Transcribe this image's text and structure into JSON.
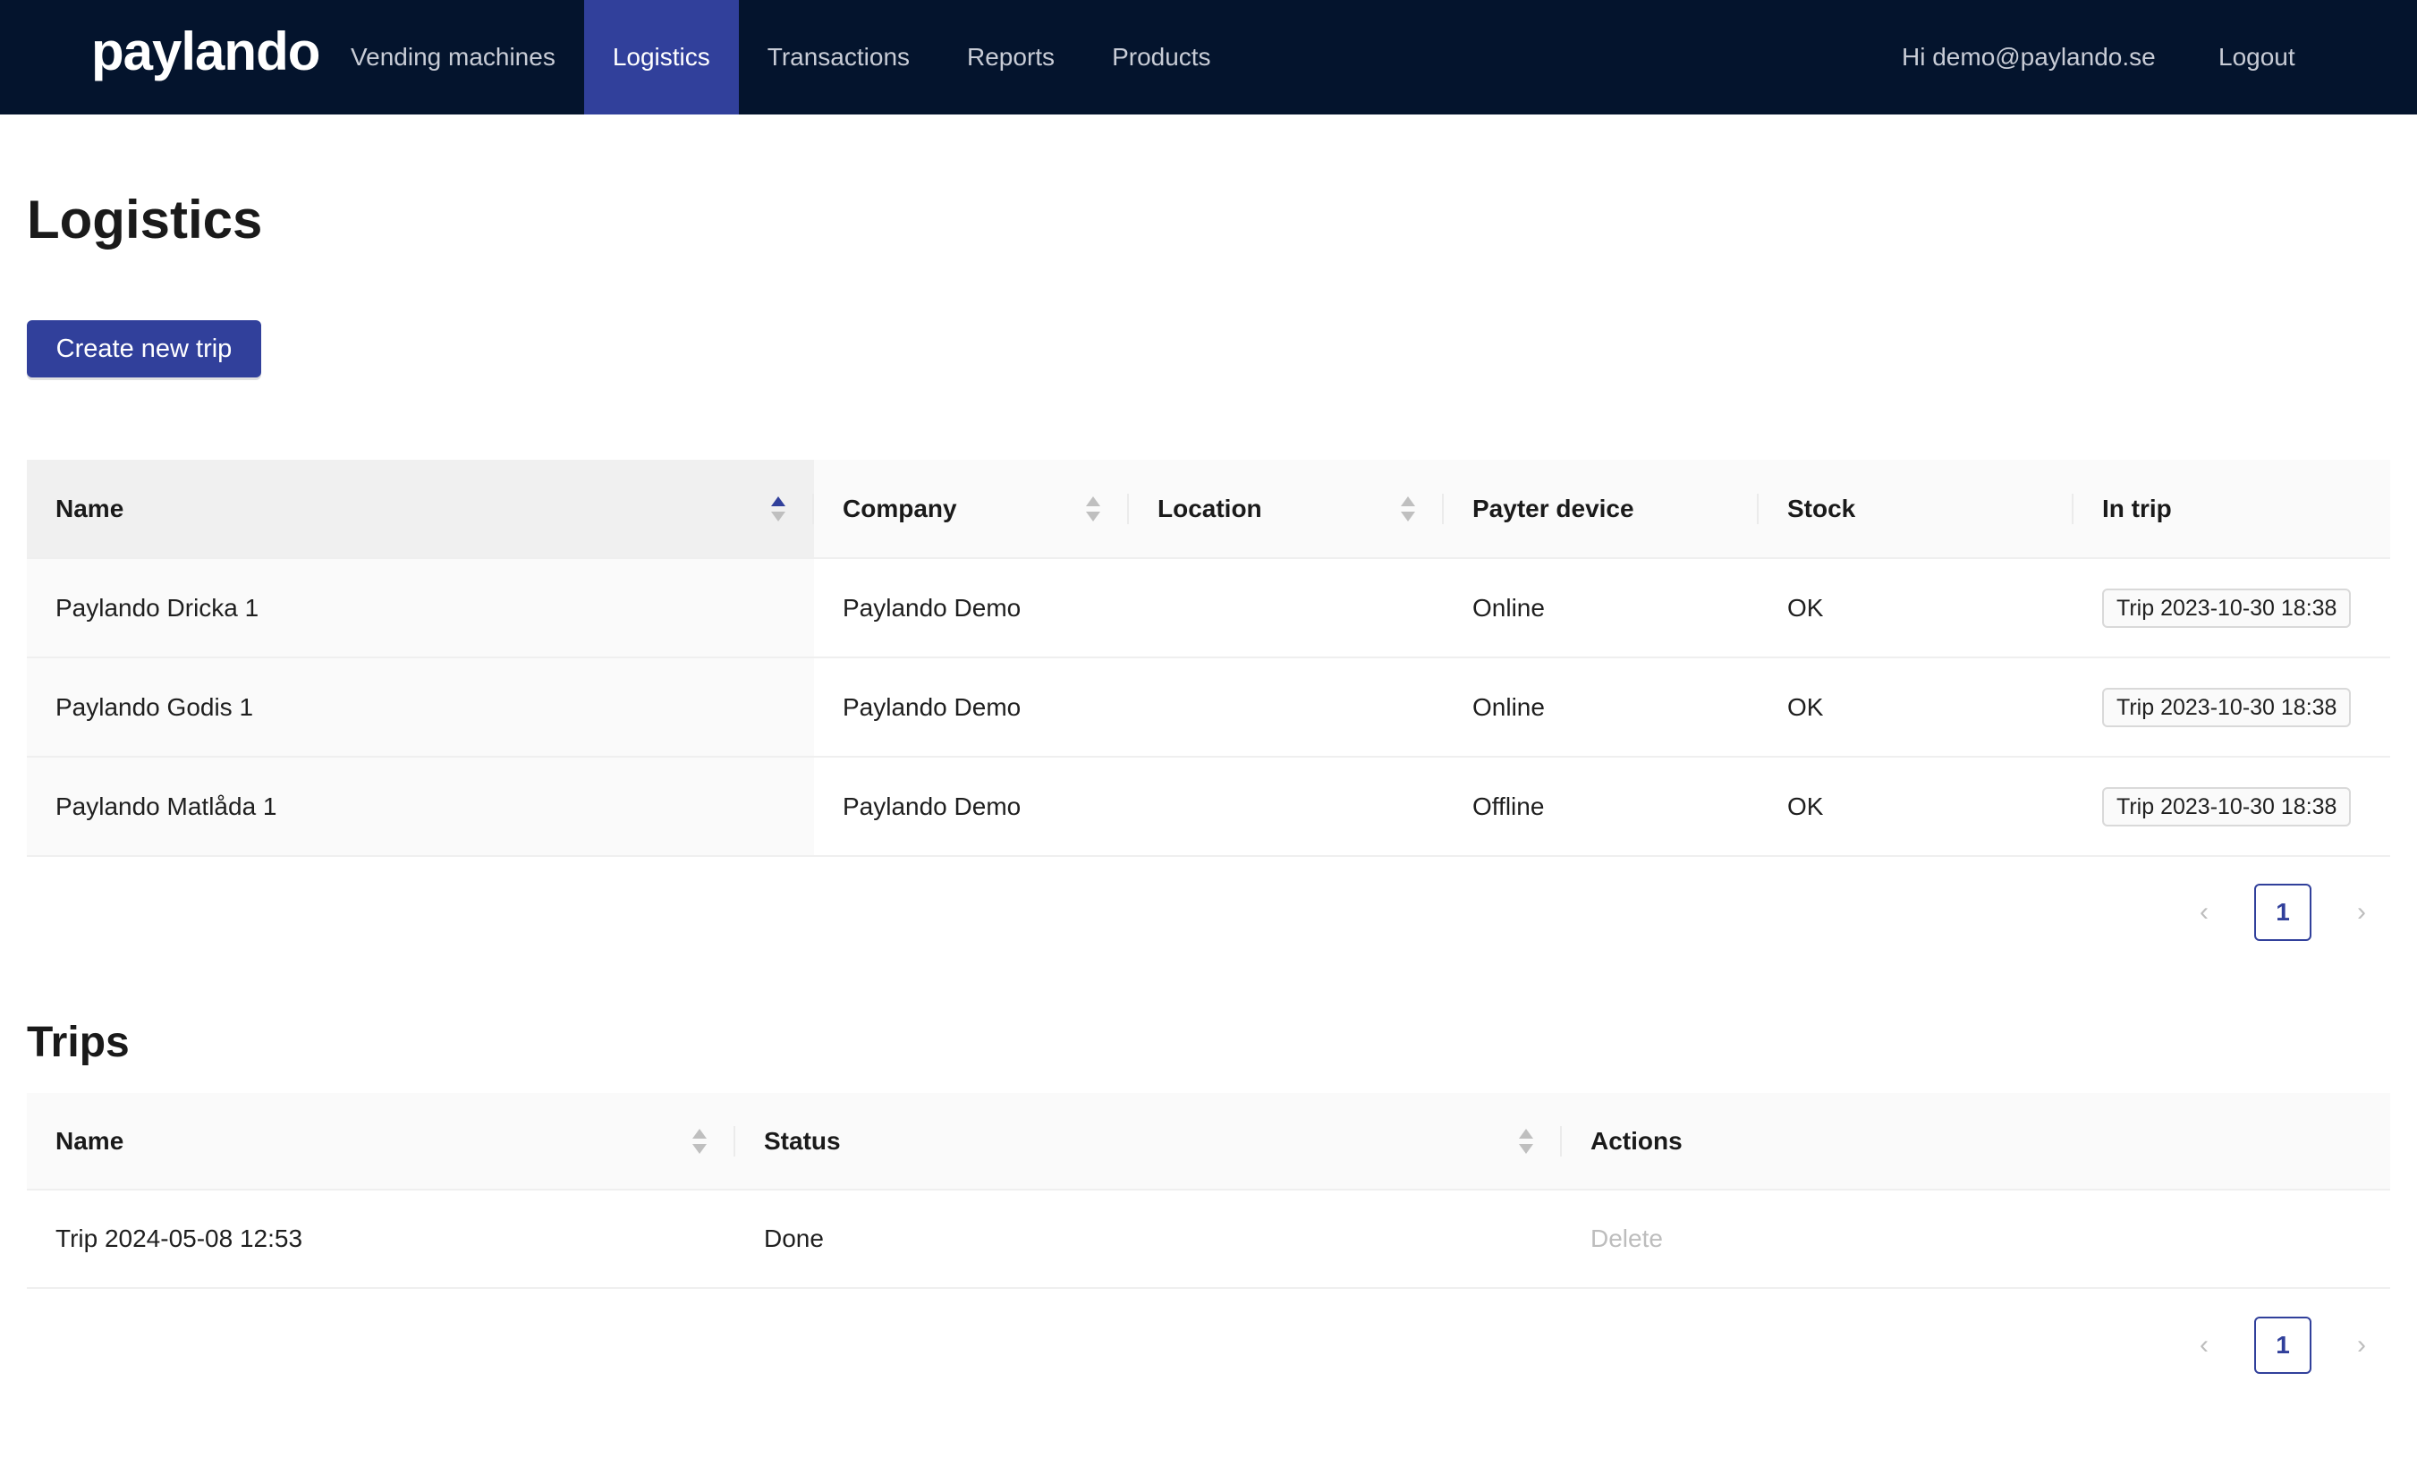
{
  "brand": "paylando",
  "nav": {
    "items": [
      "Vending machines",
      "Logistics",
      "Transactions",
      "Reports",
      "Products"
    ],
    "active": "Logistics"
  },
  "user": {
    "greeting": "Hi demo@paylando.se",
    "logout": "Logout"
  },
  "page": {
    "title": "Logistics",
    "create_button": "Create new trip"
  },
  "machines": {
    "columns": [
      "Name",
      "Company",
      "Location",
      "Payter device",
      "Stock",
      "In trip"
    ],
    "rows": [
      {
        "name": "Paylando Dricka 1",
        "company": "Paylando Demo",
        "location": "",
        "payter": "Online",
        "stock": "OK",
        "trip": "Trip 2023-10-30 18:38"
      },
      {
        "name": "Paylando Godis 1",
        "company": "Paylando Demo",
        "location": "",
        "payter": "Online",
        "stock": "OK",
        "trip": "Trip 2023-10-30 18:38"
      },
      {
        "name": "Paylando Matlåda 1",
        "company": "Paylando Demo",
        "location": "",
        "payter": "Offline",
        "stock": "OK",
        "trip": "Trip 2023-10-30 18:38"
      }
    ],
    "pagination": {
      "prev": "‹",
      "page": "1",
      "next": "›"
    }
  },
  "trips": {
    "title": "Trips",
    "columns": [
      "Name",
      "Status",
      "Actions"
    ],
    "rows": [
      {
        "name": "Trip 2024-05-08 12:53",
        "status": "Done",
        "action": "Delete"
      }
    ],
    "pagination": {
      "prev": "‹",
      "page": "1",
      "next": "›"
    }
  },
  "colors": {
    "topbar": "#04142d",
    "accent": "#31409b",
    "online": "#52c41a",
    "offline": "#ff4d4f"
  }
}
